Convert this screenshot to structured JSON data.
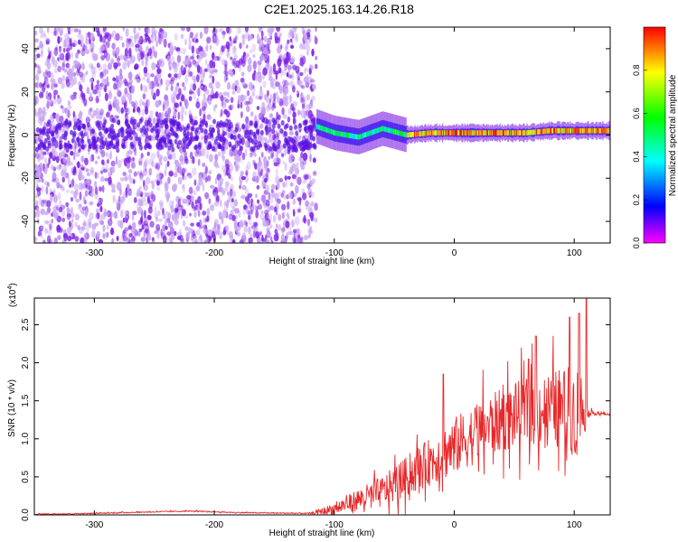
{
  "page_title": "C2E1.2025.163.14.26.R18",
  "colors": {
    "scatter": "#7b1ee6",
    "scatter_light": "#c9a6f4",
    "snr_line": "#e8282a",
    "colormap": [
      "#ff00ff",
      "#0000ff",
      "#00ffff",
      "#00ff00",
      "#ffff00",
      "#ff0000"
    ]
  },
  "chart_data": [
    {
      "type": "heatmap",
      "title": "C2E1.2025.163.14.26.R18",
      "xlabel": "Height of straight line (km)",
      "ylabel": "Frequency (Hz)",
      "xlim": [
        -350,
        130
      ],
      "ylim": [
        -50,
        50
      ],
      "x_ticks": [
        -300,
        -200,
        -100,
        0,
        100
      ],
      "x_tick_labels": [
        "-300",
        "-200",
        "-100",
        "0",
        "100"
      ],
      "y_ticks": [
        -40,
        -20,
        0,
        20,
        40
      ],
      "y_tick_labels": [
        "-40",
        "-20",
        "0",
        "20",
        "40"
      ],
      "colorbar": {
        "label": "Normalized spectral amplitude",
        "range": [
          0,
          1
        ],
        "ticks": [
          0.0,
          0.2,
          0.4,
          0.6,
          0.8
        ],
        "tick_labels": [
          "0.0",
          "0.2",
          "0.4",
          "0.6",
          "0.8"
        ]
      },
      "regions": [
        {
          "x": [
            -350,
            -115
          ],
          "freq_range": [
            -50,
            50
          ],
          "amplitude": 0.12,
          "description_level": "noise"
        },
        {
          "x": [
            -115,
            -40
          ],
          "freq_center": 2,
          "freq_width": 8,
          "amplitude": 0.45
        },
        {
          "x": [
            -40,
            130
          ],
          "freq_center": 2,
          "freq_width": 3,
          "amplitude": 0.95
        }
      ],
      "ridge": [
        {
          "x": -115,
          "y": 4
        },
        {
          "x": -100,
          "y": 1
        },
        {
          "x": -80,
          "y": -1
        },
        {
          "x": -60,
          "y": 3
        },
        {
          "x": -40,
          "y": 0
        },
        {
          "x": -20,
          "y": 1
        },
        {
          "x": 0,
          "y": 1
        },
        {
          "x": 20,
          "y": 1
        },
        {
          "x": 40,
          "y": 1
        },
        {
          "x": 60,
          "y": 1
        },
        {
          "x": 80,
          "y": 2
        },
        {
          "x": 100,
          "y": 2
        },
        {
          "x": 130,
          "y": 2
        }
      ]
    },
    {
      "type": "line",
      "xlabel": "Height of straight line (km)",
      "ylabel": "SNR (10 * v/v)",
      "y_multiplier": "(x10",
      "y_multiplier_exp": "4",
      "y_multiplier_close": ")",
      "xlim": [
        -350,
        130
      ],
      "ylim": [
        0,
        2.85
      ],
      "x_ticks": [
        -300,
        -200,
        -100,
        0,
        100
      ],
      "x_tick_labels": [
        "-300",
        "-200",
        "-100",
        "0",
        "100"
      ],
      "y_ticks": [
        0.0,
        0.5,
        1.0,
        1.5,
        2.0,
        2.5
      ],
      "y_tick_labels": [
        "0.0",
        "0.5",
        "1.0",
        "1.5",
        "2.0",
        "2.5"
      ],
      "series": [
        {
          "baseline": [
            {
              "x": -350,
              "y": 0.01
            },
            {
              "x": -300,
              "y": 0.02
            },
            {
              "x": -250,
              "y": 0.04
            },
            {
              "x": -220,
              "y": 0.05
            },
            {
              "x": -180,
              "y": 0.03
            },
            {
              "x": -120,
              "y": 0.02
            },
            {
              "x": -100,
              "y": 0.08
            },
            {
              "x": -80,
              "y": 0.2
            },
            {
              "x": -60,
              "y": 0.3
            },
            {
              "x": -40,
              "y": 0.5
            },
            {
              "x": -20,
              "y": 0.7
            },
            {
              "x": 0,
              "y": 0.9
            },
            {
              "x": 20,
              "y": 1.1
            },
            {
              "x": 40,
              "y": 1.25
            },
            {
              "x": 60,
              "y": 1.35
            },
            {
              "x": 80,
              "y": 1.4
            },
            {
              "x": 100,
              "y": 1.38
            },
            {
              "x": 110,
              "y": 1.35
            },
            {
              "x": 130,
              "y": 1.32
            }
          ],
          "noise_amplitude": [
            {
              "x": -350,
              "y": 0.01
            },
            {
              "x": -120,
              "y": 0.01
            },
            {
              "x": -100,
              "y": 0.12
            },
            {
              "x": -60,
              "y": 0.3
            },
            {
              "x": -20,
              "y": 0.45
            },
            {
              "x": 0,
              "y": 0.55
            },
            {
              "x": 40,
              "y": 0.6
            },
            {
              "x": 80,
              "y": 0.7
            },
            {
              "x": 105,
              "y": 0.9
            },
            {
              "x": 112,
              "y": 0.05
            },
            {
              "x": 130,
              "y": 0.02
            }
          ],
          "peaks": [
            {
              "x": -9,
              "y": 1.85
            },
            {
              "x": 62,
              "y": 2.05
            },
            {
              "x": 68,
              "y": 2.35
            },
            {
              "x": 96,
              "y": 2.6
            },
            {
              "x": 104,
              "y": 2.65
            },
            {
              "x": 110,
              "y": 2.85
            }
          ]
        }
      ]
    }
  ]
}
